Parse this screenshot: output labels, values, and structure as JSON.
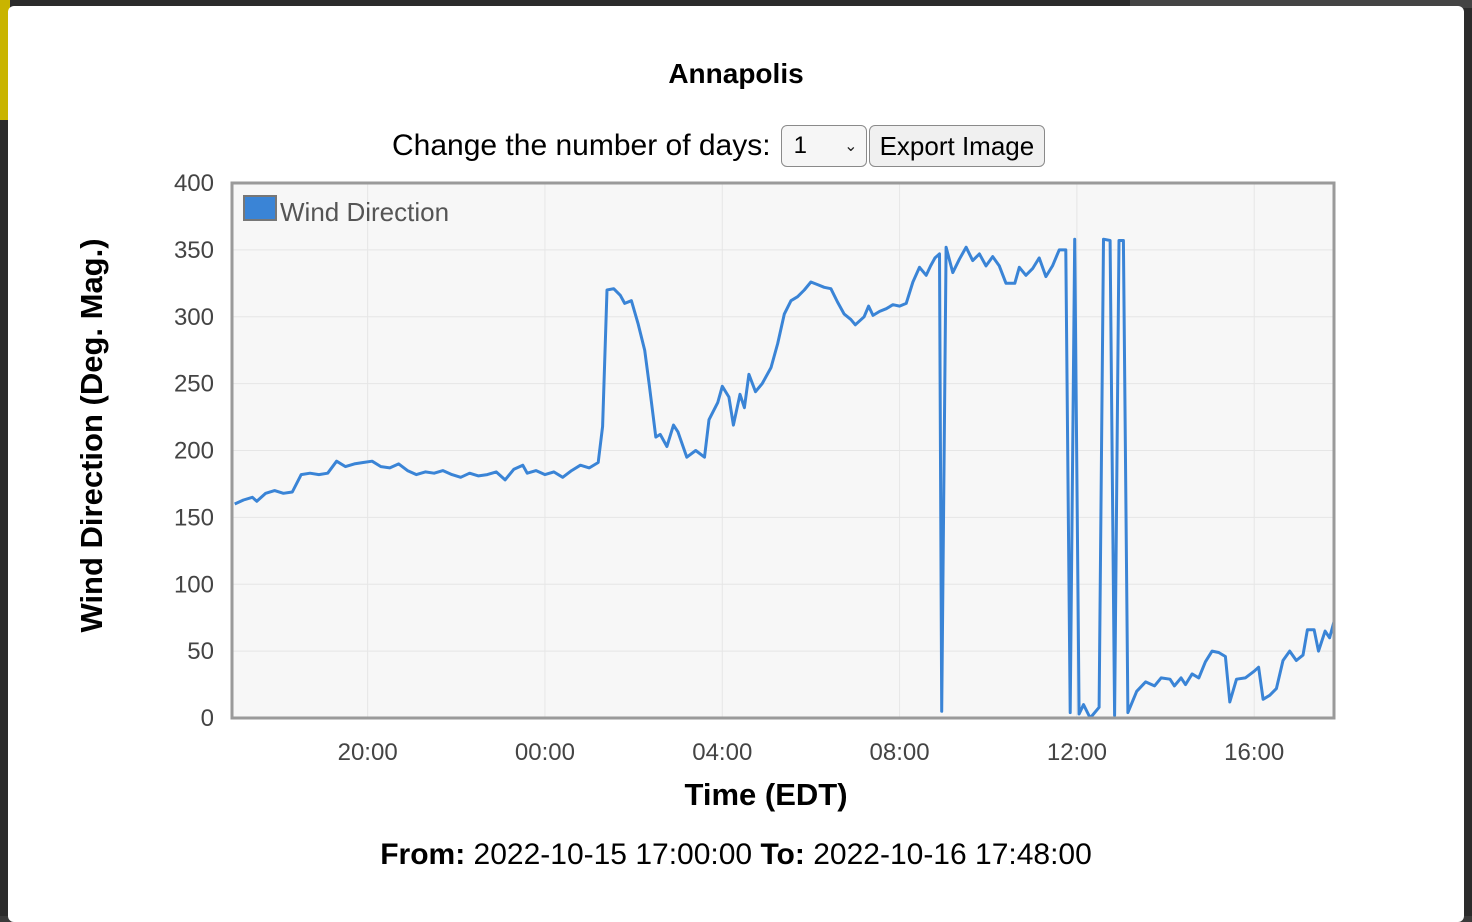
{
  "page": {
    "title": "Annapolis",
    "controls_label": "Change the number of days:",
    "days_selected": "1",
    "export_label": "Export Image",
    "from_label": "From:",
    "from_value": "2022-10-15 17:00:00",
    "to_label": "To:",
    "to_value": "2022-10-16 17:48:00"
  },
  "colors": {
    "series": "#3a84d6",
    "plot_bg": "#f7f7f7",
    "grid": "#e6e6e6",
    "axis": "#9a9a9a"
  },
  "chart_data": {
    "type": "line",
    "title": "Annapolis",
    "xlabel": "Time (EDT)",
    "ylabel": "Wind Direction (Deg. Mag.)",
    "x_unit": "hours",
    "xlim": [
      16.94,
      41.8
    ],
    "ylim": [
      0,
      400
    ],
    "yticks": [
      0,
      50,
      100,
      150,
      200,
      250,
      300,
      350,
      400
    ],
    "xticks": [
      {
        "x": 20,
        "label": "20:00"
      },
      {
        "x": 24,
        "label": "00:00"
      },
      {
        "x": 28,
        "label": "04:00"
      },
      {
        "x": 32,
        "label": "08:00"
      },
      {
        "x": 36,
        "label": "12:00"
      },
      {
        "x": 40,
        "label": "16:00"
      }
    ],
    "grid": true,
    "legend_position": "top-left",
    "series": [
      {
        "name": "Wind Direction",
        "points": [
          [
            17.0,
            160
          ],
          [
            17.2,
            163
          ],
          [
            17.4,
            165
          ],
          [
            17.5,
            162
          ],
          [
            17.7,
            168
          ],
          [
            17.9,
            170
          ],
          [
            18.1,
            168
          ],
          [
            18.3,
            169
          ],
          [
            18.5,
            182
          ],
          [
            18.7,
            183
          ],
          [
            18.9,
            182
          ],
          [
            19.1,
            183
          ],
          [
            19.3,
            192
          ],
          [
            19.5,
            188
          ],
          [
            19.7,
            190
          ],
          [
            19.9,
            191
          ],
          [
            20.1,
            192
          ],
          [
            20.3,
            188
          ],
          [
            20.5,
            187
          ],
          [
            20.7,
            190
          ],
          [
            20.9,
            185
          ],
          [
            21.1,
            182
          ],
          [
            21.3,
            184
          ],
          [
            21.5,
            183
          ],
          [
            21.7,
            185
          ],
          [
            21.9,
            182
          ],
          [
            22.1,
            180
          ],
          [
            22.3,
            183
          ],
          [
            22.5,
            181
          ],
          [
            22.7,
            182
          ],
          [
            22.9,
            184
          ],
          [
            23.1,
            178
          ],
          [
            23.3,
            186
          ],
          [
            23.5,
            189
          ],
          [
            23.6,
            183
          ],
          [
            23.8,
            185
          ],
          [
            24.0,
            182
          ],
          [
            24.2,
            184
          ],
          [
            24.4,
            180
          ],
          [
            24.6,
            185
          ],
          [
            24.8,
            189
          ],
          [
            25.0,
            187
          ],
          [
            25.2,
            191
          ],
          [
            25.3,
            218
          ],
          [
            25.4,
            320
          ],
          [
            25.55,
            321
          ],
          [
            25.7,
            316
          ],
          [
            25.8,
            310
          ],
          [
            25.95,
            312
          ],
          [
            26.1,
            295
          ],
          [
            26.25,
            275
          ],
          [
            26.35,
            250
          ],
          [
            26.5,
            210
          ],
          [
            26.6,
            212
          ],
          [
            26.75,
            203
          ],
          [
            26.9,
            219
          ],
          [
            27.0,
            214
          ],
          [
            27.2,
            195
          ],
          [
            27.4,
            200
          ],
          [
            27.6,
            195
          ],
          [
            27.7,
            223
          ],
          [
            27.9,
            236
          ],
          [
            28.0,
            248
          ],
          [
            28.15,
            240
          ],
          [
            28.25,
            219
          ],
          [
            28.4,
            242
          ],
          [
            28.5,
            232
          ],
          [
            28.6,
            257
          ],
          [
            28.75,
            244
          ],
          [
            28.9,
            250
          ],
          [
            29.1,
            262
          ],
          [
            29.25,
            280
          ],
          [
            29.4,
            302
          ],
          [
            29.55,
            312
          ],
          [
            29.7,
            315
          ],
          [
            29.85,
            320
          ],
          [
            30.0,
            326
          ],
          [
            30.15,
            324
          ],
          [
            30.3,
            322
          ],
          [
            30.45,
            321
          ],
          [
            30.6,
            311
          ],
          [
            30.75,
            302
          ],
          [
            30.9,
            298
          ],
          [
            31.0,
            294
          ],
          [
            31.2,
            300
          ],
          [
            31.3,
            308
          ],
          [
            31.4,
            301
          ],
          [
            31.55,
            304
          ],
          [
            31.7,
            306
          ],
          [
            31.85,
            309
          ],
          [
            32.0,
            308
          ],
          [
            32.15,
            310
          ],
          [
            32.3,
            326
          ],
          [
            32.45,
            337
          ],
          [
            32.6,
            331
          ],
          [
            32.7,
            338
          ],
          [
            32.8,
            344
          ],
          [
            32.9,
            347
          ],
          [
            32.95,
            5
          ],
          [
            33.05,
            352
          ],
          [
            33.2,
            333
          ],
          [
            33.35,
            343
          ],
          [
            33.5,
            352
          ],
          [
            33.65,
            342
          ],
          [
            33.8,
            347
          ],
          [
            33.95,
            338
          ],
          [
            34.1,
            345
          ],
          [
            34.25,
            338
          ],
          [
            34.4,
            325
          ],
          [
            34.6,
            325
          ],
          [
            34.7,
            337
          ],
          [
            34.85,
            331
          ],
          [
            35.0,
            336
          ],
          [
            35.15,
            344
          ],
          [
            35.3,
            330
          ],
          [
            35.45,
            338
          ],
          [
            35.6,
            350
          ],
          [
            35.75,
            350
          ],
          [
            35.85,
            4
          ],
          [
            35.95,
            358
          ],
          [
            36.05,
            3
          ],
          [
            36.15,
            10
          ],
          [
            36.3,
            0
          ],
          [
            36.5,
            8
          ],
          [
            36.6,
            358
          ],
          [
            36.75,
            357
          ],
          [
            36.85,
            2
          ],
          [
            36.95,
            357
          ],
          [
            37.05,
            357
          ],
          [
            37.15,
            4
          ],
          [
            37.35,
            20
          ],
          [
            37.55,
            27
          ],
          [
            37.75,
            24
          ],
          [
            37.9,
            30
          ],
          [
            38.1,
            29
          ],
          [
            38.2,
            24
          ],
          [
            38.35,
            30
          ],
          [
            38.45,
            25
          ],
          [
            38.6,
            33
          ],
          [
            38.75,
            30
          ],
          [
            38.9,
            42
          ],
          [
            39.05,
            50
          ],
          [
            39.2,
            49
          ],
          [
            39.35,
            46
          ],
          [
            39.45,
            12
          ],
          [
            39.6,
            29
          ],
          [
            39.8,
            30
          ],
          [
            40.0,
            35
          ],
          [
            40.1,
            38
          ],
          [
            40.2,
            14
          ],
          [
            40.35,
            17
          ],
          [
            40.5,
            22
          ],
          [
            40.65,
            43
          ],
          [
            40.8,
            50
          ],
          [
            40.95,
            43
          ],
          [
            41.1,
            47
          ],
          [
            41.2,
            66
          ],
          [
            41.35,
            66
          ],
          [
            41.45,
            50
          ],
          [
            41.6,
            65
          ],
          [
            41.7,
            60
          ],
          [
            41.8,
            72
          ]
        ]
      }
    ]
  }
}
